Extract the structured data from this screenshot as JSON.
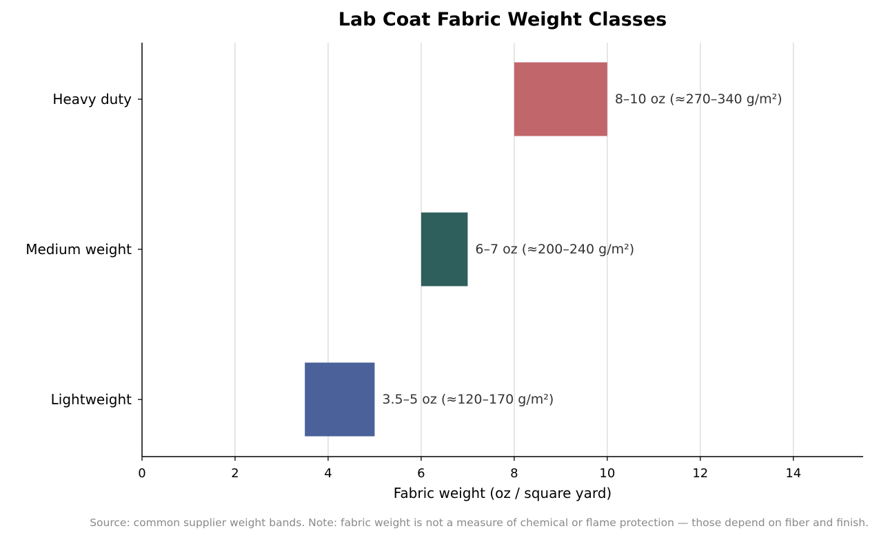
{
  "chart_data": {
    "type": "bar",
    "orientation": "horizontal",
    "variant": "floating-range",
    "title": "Lab Coat Fabric Weight Classes",
    "xlabel": "Fabric weight (oz / square yard)",
    "ylabel": "",
    "xlim": [
      0,
      15.5
    ],
    "xticks": [
      0,
      2,
      4,
      6,
      8,
      10,
      12,
      14
    ],
    "grid": "vertical",
    "categories": [
      "Lightweight",
      "Medium weight",
      "Heavy duty"
    ],
    "ranges": [
      {
        "category": "Lightweight",
        "start": 3.5,
        "end": 5,
        "label": "3.5–5 oz  (≈120–170 g/m²)",
        "color": "#4a6299"
      },
      {
        "category": "Medium weight",
        "start": 6,
        "end": 7,
        "label": "6–7 oz  (≈200–240 g/m²)",
        "color": "#2e5f5c"
      },
      {
        "category": "Heavy duty",
        "start": 8,
        "end": 10,
        "label": "8–10 oz  (≈270–340 g/m²)",
        "color": "#c1666b"
      }
    ],
    "footnote": "Source: common supplier weight bands. Note: fabric weight is not a measure of chemical or flame protection — those depend on fiber and finish."
  }
}
